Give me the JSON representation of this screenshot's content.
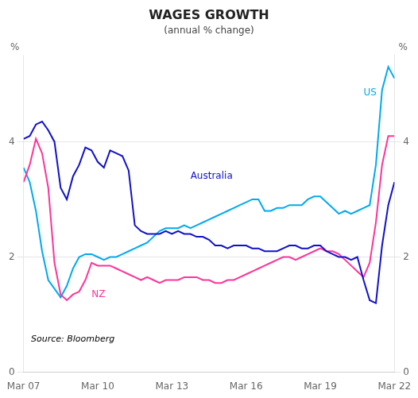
{
  "chart_data": {
    "type": "line",
    "title": "WAGES GROWTH",
    "subtitle": "(annual % change)",
    "source": "Source: Bloomberg",
    "ylabel": "%",
    "y2label": "%",
    "grid": true,
    "x": [
      0,
      0.5,
      1,
      1.5,
      2,
      2.5,
      3,
      3.5,
      4,
      4.5,
      5,
      5.5,
      6,
      6.5,
      7,
      7.5,
      8,
      8.5,
      9,
      9.5,
      10,
      10.5,
      11,
      11.5,
      12,
      12.5,
      13,
      13.5,
      14,
      14.5,
      15,
      15.5,
      16,
      16.5,
      17,
      17.5,
      18,
      18.5,
      19,
      19.5,
      20,
      20.5,
      21,
      21.5,
      22,
      22.5,
      23,
      23.5,
      24,
      24.5,
      25,
      25.5,
      26,
      26.5,
      27,
      27.5,
      28,
      28.5,
      29,
      29.5,
      30
    ],
    "xlim": [
      0,
      30
    ],
    "xticks": [
      {
        "value": 0,
        "label": "Mar 07"
      },
      {
        "value": 6,
        "label": "Mar 10"
      },
      {
        "value": 12,
        "label": "Mar 13"
      },
      {
        "value": 18,
        "label": "Mar 16"
      },
      {
        "value": 24,
        "label": "Mar 19"
      },
      {
        "value": 30,
        "label": "Mar 22"
      }
    ],
    "ylim": [
      0,
      5.5
    ],
    "yticks": [
      0,
      2,
      4
    ],
    "y2lim": [
      0,
      5.5
    ],
    "y2ticks": [
      0,
      2,
      4
    ],
    "series": [
      {
        "name": "Australia",
        "color": "#1010CC",
        "values": [
          4.05,
          4.1,
          4.3,
          4.35,
          4.2,
          4.0,
          3.2,
          3.0,
          3.4,
          3.6,
          3.9,
          3.85,
          3.65,
          3.55,
          3.85,
          3.8,
          3.75,
          3.5,
          2.55,
          2.45,
          2.4,
          2.4,
          2.4,
          2.45,
          2.4,
          2.45,
          2.4,
          2.4,
          2.35,
          2.35,
          2.3,
          2.2,
          2.2,
          2.15,
          2.2,
          2.2,
          2.2,
          2.15,
          2.15,
          2.1,
          2.1,
          2.1,
          2.15,
          2.2,
          2.2,
          2.15,
          2.15,
          2.2,
          2.2,
          2.1,
          2.05,
          2.0,
          2.0,
          1.95,
          2.0,
          1.6,
          1.25,
          1.2,
          2.2,
          2.9,
          3.3
        ]
      },
      {
        "name": "NZ",
        "color": "#FF3399",
        "values": [
          3.3,
          3.6,
          4.05,
          3.8,
          3.2,
          1.9,
          1.35,
          1.25,
          1.35,
          1.4,
          1.6,
          1.9,
          1.85,
          1.85,
          1.85,
          1.8,
          1.75,
          1.7,
          1.65,
          1.6,
          1.65,
          1.6,
          1.55,
          1.6,
          1.6,
          1.6,
          1.65,
          1.65,
          1.65,
          1.6,
          1.6,
          1.55,
          1.55,
          1.6,
          1.6,
          1.65,
          1.7,
          1.75,
          1.8,
          1.85,
          1.9,
          1.95,
          2.0,
          2.0,
          1.95,
          2.0,
          2.05,
          2.1,
          2.15,
          2.1,
          2.1,
          2.05,
          1.95,
          1.85,
          1.75,
          1.65,
          1.9,
          2.6,
          3.6,
          4.1,
          4.1
        ]
      },
      {
        "name": "US",
        "color": "#00AAEE",
        "values": [
          3.55,
          3.3,
          2.8,
          2.1,
          1.6,
          1.45,
          1.3,
          1.5,
          1.8,
          2.0,
          2.05,
          2.05,
          2.0,
          1.95,
          2.0,
          2.0,
          2.05,
          2.1,
          2.15,
          2.2,
          2.25,
          2.35,
          2.45,
          2.5,
          2.5,
          2.5,
          2.55,
          2.5,
          2.55,
          2.6,
          2.65,
          2.7,
          2.75,
          2.8,
          2.85,
          2.9,
          2.95,
          3.0,
          3.0,
          2.8,
          2.8,
          2.85,
          2.85,
          2.9,
          2.9,
          2.9,
          3.0,
          3.05,
          3.05,
          2.95,
          2.85,
          2.75,
          2.8,
          2.75,
          2.8,
          2.85,
          2.9,
          3.6,
          4.9,
          5.3,
          5.1
        ]
      }
    ],
    "annotations": [
      {
        "x": 13.5,
        "y": 3.4,
        "text": "Australia",
        "color": "#1010CC"
      },
      {
        "x": 5.5,
        "y": 1.35,
        "text": "NZ",
        "color": "#FF3399"
      },
      {
        "x": 27.5,
        "y": 4.85,
        "text": "US",
        "color": "#00AAEE"
      }
    ]
  }
}
